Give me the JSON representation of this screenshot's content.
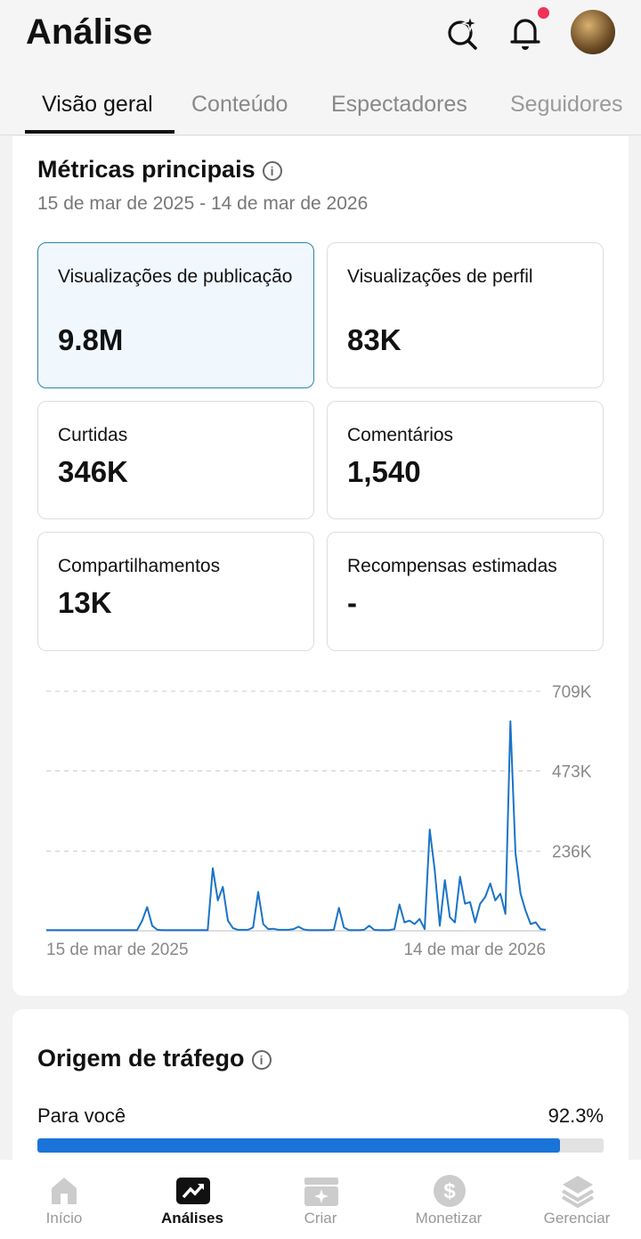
{
  "header": {
    "title": "Análise",
    "search_icon": "sparkle-search-icon",
    "bell_icon": "bell-icon",
    "has_notification": true
  },
  "tabs": [
    {
      "label": "Visão geral",
      "active": true
    },
    {
      "label": "Conteúdo"
    },
    {
      "label": "Espectadores"
    },
    {
      "label": "Seguidores"
    }
  ],
  "metrics_section": {
    "title": "Métricas principais",
    "info_icon": "i",
    "date_range": "15 de mar de 2025 - 14 de mar de 2026",
    "cards": [
      {
        "label": "Visualizações de publicação",
        "value": "9.8M",
        "selected": true
      },
      {
        "label": "Visualizações de perfil",
        "value": "83K"
      },
      {
        "label": "Curtidas",
        "value": "346K"
      },
      {
        "label": "Comentários",
        "value": "1,540"
      },
      {
        "label": "Compartilhamentos",
        "value": "13K"
      },
      {
        "label": "Recompensas estimadas",
        "value": "-"
      }
    ]
  },
  "chart_data": {
    "type": "line",
    "ylim": [
      0,
      709000
    ],
    "yticks": [
      "709K",
      "473K",
      "236K"
    ],
    "ytick_values": [
      709000,
      473000,
      236000
    ],
    "xlabels": [
      "15 de mar de 2025",
      "14 de mar de 2026"
    ],
    "grid": "dashed-horizontal",
    "color": "#1a73c8",
    "values": [
      2000,
      2000,
      2000,
      2000,
      2000,
      2000,
      2000,
      2000,
      2000,
      2000,
      2000,
      2000,
      2000,
      2000,
      2000,
      2000,
      2000,
      2000,
      2000,
      30000,
      70000,
      15000,
      3000,
      2000,
      2000,
      2000,
      2000,
      2000,
      2000,
      2000,
      2000,
      2000,
      2000,
      185000,
      90000,
      130000,
      30000,
      8000,
      3000,
      3000,
      3000,
      10000,
      115000,
      20000,
      5000,
      6000,
      3000,
      3000,
      3000,
      5000,
      12000,
      4000,
      2000,
      2000,
      2000,
      2000,
      2000,
      3000,
      68000,
      10000,
      2000,
      2000,
      2000,
      3000,
      15000,
      3000,
      2000,
      2000,
      2000,
      5000,
      78000,
      25000,
      30000,
      20000,
      35000,
      5000,
      300000,
      180000,
      15000,
      150000,
      40000,
      25000,
      160000,
      80000,
      85000,
      25000,
      80000,
      100000,
      140000,
      90000,
      110000,
      50000,
      620000,
      230000,
      110000,
      60000,
      20000,
      25000,
      5000,
      3000
    ]
  },
  "traffic": {
    "title": "Origem de tráfego",
    "info_icon": "i",
    "items": [
      {
        "label": "Para você",
        "value": "92.3%",
        "fraction": 0.923
      }
    ]
  },
  "nav": [
    {
      "label": "Início",
      "icon": "home-icon"
    },
    {
      "label": "Análises",
      "icon": "analytics-icon",
      "active": true
    },
    {
      "label": "Criar",
      "icon": "create-icon"
    },
    {
      "label": "Monetizar",
      "icon": "dollar-icon"
    },
    {
      "label": "Gerenciar",
      "icon": "layers-icon"
    }
  ]
}
